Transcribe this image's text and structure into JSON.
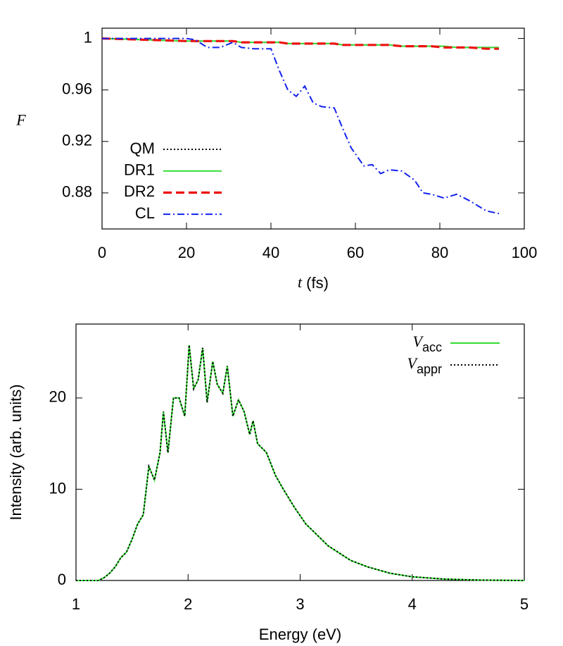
{
  "chart_data": [
    {
      "type": "line",
      "ylabel": "F",
      "xlabel": [
        "t",
        "(fs)"
      ],
      "xlim": [
        0,
        100
      ],
      "xticks": [
        0,
        20,
        40,
        60,
        80,
        100
      ],
      "ylim": [
        0.852,
        1.008
      ],
      "yticks": [
        0.88,
        0.92,
        0.96,
        1
      ],
      "legend": "lower left",
      "x": [
        0,
        10,
        20,
        22,
        25,
        28,
        31,
        33,
        36,
        40,
        42,
        44,
        46,
        48,
        50,
        52,
        55,
        57,
        59,
        62,
        64,
        66,
        68,
        71,
        74,
        76,
        78,
        81,
        84,
        87,
        91,
        94
      ],
      "series": [
        {
          "name": "QM",
          "color": "#000000",
          "dash": "dotted",
          "values": [
            1,
            0.999,
            0.998,
            0.998,
            0.998,
            0.998,
            0.998,
            0.997,
            0.997,
            0.997,
            0.997,
            0.996,
            0.996,
            0.996,
            0.996,
            0.996,
            0.996,
            0.995,
            0.995,
            0.995,
            0.995,
            0.995,
            0.995,
            0.994,
            0.994,
            0.994,
            0.994,
            0.994,
            0.993,
            0.993,
            0.993,
            0.993
          ]
        },
        {
          "name": "DR1",
          "color": "#33dd33",
          "dash": "solid",
          "values": [
            1,
            0.999,
            0.998,
            0.998,
            0.998,
            0.998,
            0.998,
            0.997,
            0.997,
            0.997,
            0.997,
            0.996,
            0.996,
            0.996,
            0.996,
            0.996,
            0.996,
            0.995,
            0.995,
            0.995,
            0.995,
            0.995,
            0.995,
            0.994,
            0.994,
            0.994,
            0.994,
            0.994,
            0.993,
            0.993,
            0.993,
            0.993
          ]
        },
        {
          "name": "DR2",
          "color": "#ee1111",
          "dash": "dashed",
          "values": [
            1,
            0.999,
            0.998,
            0.998,
            0.998,
            0.998,
            0.998,
            0.997,
            0.997,
            0.997,
            0.997,
            0.996,
            0.996,
            0.996,
            0.996,
            0.996,
            0.996,
            0.995,
            0.995,
            0.995,
            0.995,
            0.995,
            0.995,
            0.994,
            0.994,
            0.994,
            0.994,
            0.993,
            0.993,
            0.993,
            0.992,
            0.992
          ]
        },
        {
          "name": "CL",
          "color": "#1122ee",
          "dash": "dash-dot",
          "values": [
            1,
            1,
            1,
            0.999,
            0.993,
            0.993,
            0.997,
            0.993,
            0.992,
            0.992,
            0.975,
            0.96,
            0.955,
            0.963,
            0.95,
            0.947,
            0.946,
            0.93,
            0.915,
            0.901,
            0.902,
            0.895,
            0.898,
            0.897,
            0.89,
            0.88,
            0.879,
            0.876,
            0.879,
            0.874,
            0.866,
            0.864
          ]
        }
      ]
    },
    {
      "type": "line",
      "ylabel": "Intensity (arb. units)",
      "xlabel": "Energy (eV)",
      "xlim": [
        1,
        5
      ],
      "xticks": [
        1,
        2,
        3,
        4,
        5
      ],
      "ylim": [
        0,
        28.1
      ],
      "yticks": [
        0,
        10,
        20
      ],
      "legend": "upper right",
      "x": [
        1,
        1.2,
        1.25,
        1.3,
        1.35,
        1.4,
        1.45,
        1.5,
        1.55,
        1.6,
        1.65,
        1.7,
        1.75,
        1.78,
        1.82,
        1.87,
        1.92,
        1.97,
        2.01,
        2.05,
        2.09,
        2.13,
        2.17,
        2.22,
        2.26,
        2.31,
        2.35,
        2.4,
        2.45,
        2.5,
        2.55,
        2.58,
        2.62,
        2.7,
        2.78,
        2.85,
        2.95,
        3.05,
        3.15,
        3.25,
        3.35,
        3.45,
        3.6,
        3.8,
        4,
        4.3,
        4.6,
        5
      ],
      "series": [
        {
          "name": [
            "V",
            "acc"
          ],
          "color": "#33dd33",
          "dash": "solid",
          "values": [
            0,
            0,
            0.3,
            0.8,
            1.5,
            2.5,
            3.1,
            4.5,
            6.2,
            7.2,
            12.5,
            11,
            14,
            18.5,
            14,
            20,
            20,
            18,
            25.8,
            21,
            22,
            25.5,
            19.5,
            24,
            21.5,
            20.5,
            23.5,
            18,
            19.8,
            18.5,
            16,
            17.5,
            15,
            14,
            11.5,
            10,
            8,
            6.2,
            5,
            3.8,
            3,
            2.2,
            1.5,
            0.8,
            0.4,
            0.15,
            0.05,
            0
          ]
        },
        {
          "name": [
            "V",
            "appr"
          ],
          "color": "#000000",
          "dash": "dotted",
          "values": [
            0,
            0,
            0.3,
            0.8,
            1.5,
            2.5,
            3.1,
            4.5,
            6.2,
            7.2,
            12.5,
            11,
            14,
            18.5,
            14,
            20,
            20,
            18,
            25.8,
            21,
            22,
            25.5,
            19.5,
            24,
            21.5,
            20.5,
            23.5,
            18,
            19.8,
            18.5,
            16,
            17.5,
            15,
            14,
            11.5,
            10,
            8,
            6.2,
            5,
            3.8,
            3,
            2.2,
            1.5,
            0.8,
            0.4,
            0.15,
            0.05,
            0
          ]
        }
      ]
    }
  ]
}
